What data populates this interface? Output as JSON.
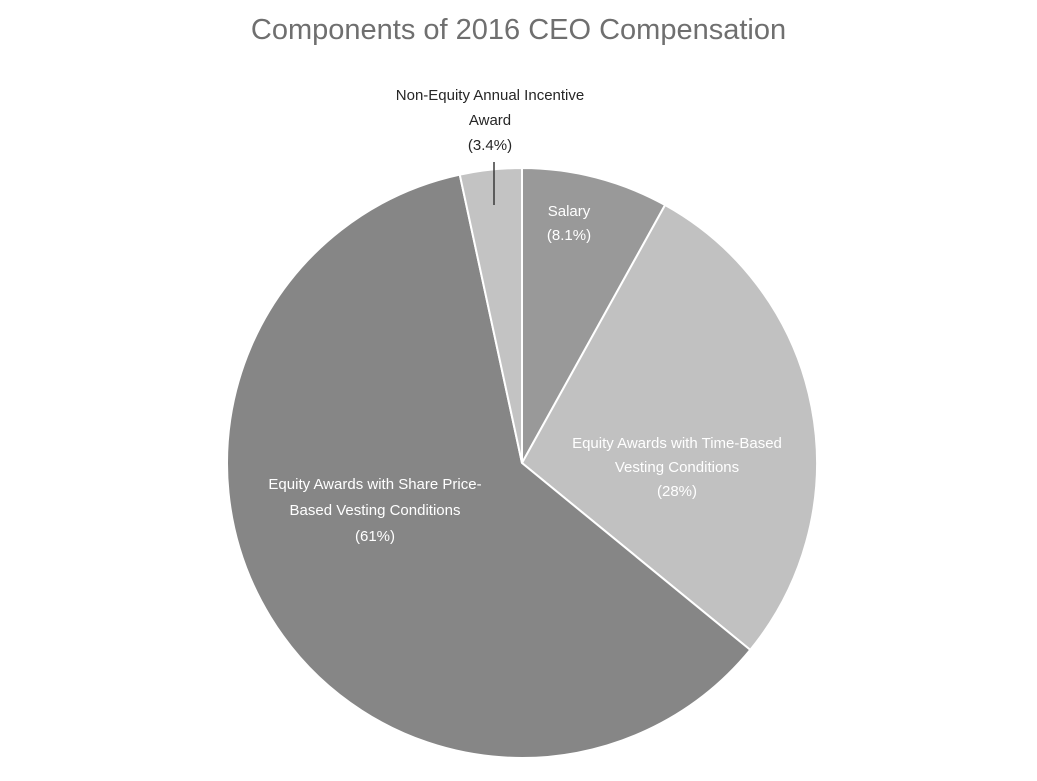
{
  "chart_data": {
    "type": "pie",
    "title": "Components of 2016 CEO Compensation",
    "slices": [
      {
        "name": "Salary",
        "value": 8.1,
        "label_lines": [
          "Salary",
          "(8.1%)"
        ],
        "color": "#999999",
        "label_color": "#ffffff"
      },
      {
        "name": "Equity Awards with Time-Based Vesting Conditions",
        "value": 28,
        "label_lines": [
          "Equity Awards with Time-Based",
          "Vesting Conditions",
          "(28%)"
        ],
        "color": "#c1c1c1",
        "label_color": "#ffffff"
      },
      {
        "name": "Equity Awards with Share Price-Based Vesting Conditions",
        "value": 61,
        "label_lines": [
          "Equity Awards with Share Price-",
          "Based Vesting Conditions",
          "(61%)"
        ],
        "color": "#868686",
        "label_color": "#ffffff"
      },
      {
        "name": "Non-Equity Annual Incentive Award",
        "value": 3.4,
        "label_lines": [
          "Non-Equity Annual Incentive",
          "Award",
          "(3.4%)"
        ],
        "color": "#c3c3c3",
        "label_color": "#262626"
      }
    ],
    "legend": "none"
  }
}
